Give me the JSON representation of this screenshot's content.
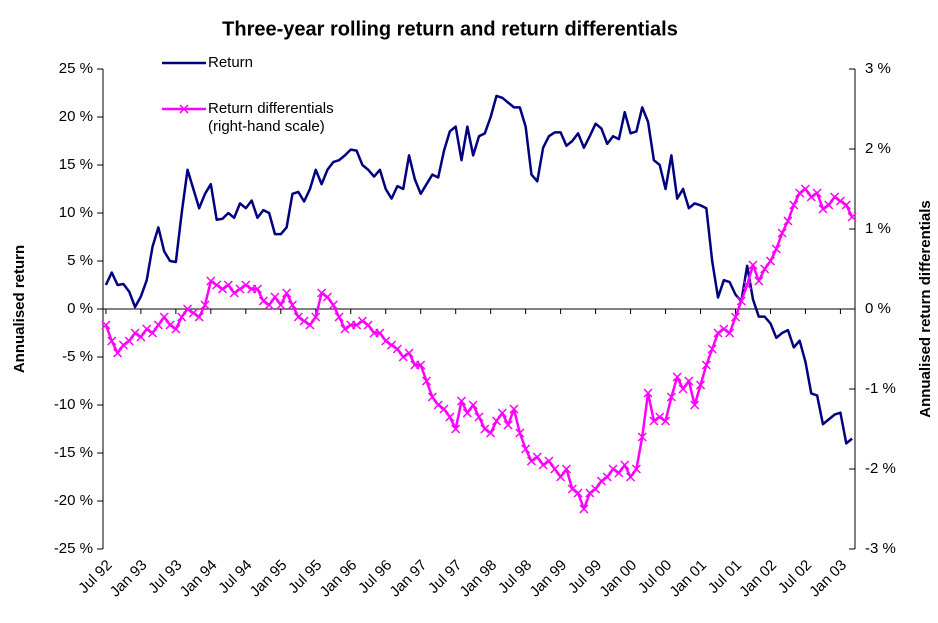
{
  "chart_data": {
    "type": "line",
    "title": "Three-year rolling return and return differentials",
    "y_label": "Annualised return",
    "y2_label": "Annualised return differentials",
    "categories": [
      "Jul 92",
      null,
      null,
      null,
      null,
      null,
      "Jan 93",
      null,
      null,
      null,
      null,
      null,
      "Jul 93",
      null,
      null,
      null,
      null,
      null,
      "Jan 94",
      null,
      null,
      null,
      null,
      null,
      "Jul 94",
      null,
      null,
      null,
      null,
      null,
      "Jan 95",
      null,
      null,
      null,
      null,
      null,
      "Jul 95",
      null,
      null,
      null,
      null,
      null,
      "Jan 96",
      null,
      null,
      null,
      null,
      null,
      "Jul 96",
      null,
      null,
      null,
      null,
      null,
      "Jan 97",
      null,
      null,
      null,
      null,
      null,
      "Jul 97",
      null,
      null,
      null,
      null,
      null,
      "Jan 98",
      null,
      null,
      null,
      null,
      null,
      "Jul 98",
      null,
      null,
      null,
      null,
      null,
      "Jan 99",
      null,
      null,
      null,
      null,
      null,
      "Jul 99",
      null,
      null,
      null,
      null,
      null,
      "Jan 00",
      null,
      null,
      null,
      null,
      null,
      "Jul 00",
      null,
      null,
      null,
      null,
      null,
      "Jan 01",
      null,
      null,
      null,
      null,
      null,
      "Jul 01",
      null,
      null,
      null,
      null,
      null,
      "Jan 02",
      null,
      null,
      null,
      null,
      null,
      "Jul 02",
      null,
      null,
      null,
      null,
      null,
      "Jan 03",
      null,
      null
    ],
    "series": [
      {
        "name": "Return",
        "color": "#000080",
        "values": [
          2.5,
          3.8,
          2.5,
          2.6,
          1.8,
          0.2,
          1.3,
          3,
          6.5,
          8.5,
          6,
          5,
          4.9,
          10,
          14.5,
          12.5,
          10.5,
          12,
          13,
          9.3,
          9.4,
          10,
          9.5,
          11,
          10.5,
          11.3,
          9.5,
          10.3,
          10,
          7.8,
          7.8,
          8.5,
          12,
          12.2,
          11.2,
          12.5,
          14.5,
          13,
          14.5,
          15.3,
          15.5,
          16,
          16.6,
          16.5,
          15,
          14.5,
          13.8,
          14.5,
          12.5,
          11.5,
          12.8,
          12.5,
          16,
          13.5,
          12,
          13,
          14,
          13.7,
          16.5,
          18.5,
          19,
          15.5,
          19,
          16,
          18,
          18.3,
          20,
          22.2,
          22,
          21.5,
          21,
          21,
          19,
          14,
          13.3,
          16.8,
          18,
          18.4,
          18.4,
          17,
          17.5,
          18.3,
          16.8,
          18,
          19.3,
          18.8,
          17.2,
          18,
          17.7,
          20.5,
          18.3,
          18.5,
          21,
          19.5,
          15.5,
          15,
          12.5,
          16,
          11.5,
          12.5,
          10.5,
          11,
          10.8,
          10.5,
          5,
          1.2,
          3,
          2.8,
          1.5,
          0.8,
          4.5,
          1,
          -0.8,
          -0.8,
          -1.5,
          -3,
          -2.5,
          -2.2,
          -4,
          -3.3,
          -5.5,
          -8.8,
          -9,
          -12,
          -11.5,
          -11,
          -10.8,
          -14,
          -13.5
        ]
      },
      {
        "name": "Return differentials (right-hand scale)",
        "color": "#ff00ff",
        "axis": "y2",
        "marker": "x",
        "values": [
          -0.2,
          -0.4,
          -0.55,
          -0.45,
          -0.4,
          -0.3,
          -0.35,
          -0.25,
          -0.3,
          -0.2,
          -0.1,
          -0.2,
          -0.25,
          -0.1,
          0,
          -0.05,
          -0.1,
          0.05,
          0.35,
          0.3,
          0.25,
          0.3,
          0.2,
          0.25,
          0.3,
          0.25,
          0.25,
          0.1,
          0.05,
          0.15,
          0.05,
          0.2,
          0.05,
          -0.1,
          -0.15,
          -0.2,
          -0.1,
          0.2,
          0.15,
          0.05,
          -0.1,
          -0.25,
          -0.2,
          -0.2,
          -0.15,
          -0.2,
          -0.3,
          -0.3,
          -0.4,
          -0.45,
          -0.5,
          -0.6,
          -0.55,
          -0.7,
          -0.7,
          -0.9,
          -1.1,
          -1.2,
          -1.25,
          -1.35,
          -1.5,
          -1.15,
          -1.3,
          -1.2,
          -1.35,
          -1.5,
          -1.55,
          -1.4,
          -1.3,
          -1.45,
          -1.25,
          -1.55,
          -1.75,
          -1.9,
          -1.85,
          -1.95,
          -1.9,
          -2,
          -2.1,
          -2,
          -2.25,
          -2.3,
          -2.5,
          -2.3,
          -2.25,
          -2.15,
          -2.1,
          -2,
          -2.05,
          -1.95,
          -2.1,
          -2,
          -1.6,
          -1.05,
          -1.4,
          -1.35,
          -1.4,
          -1.1,
          -0.85,
          -1,
          -0.9,
          -1.2,
          -0.95,
          -0.7,
          -0.5,
          -0.3,
          -0.25,
          -0.3,
          -0.1,
          0.1,
          0.3,
          0.55,
          0.35,
          0.5,
          0.6,
          0.75,
          0.95,
          1.1,
          1.3,
          1.45,
          1.5,
          1.4,
          1.45,
          1.25,
          1.3,
          1.4,
          1.35,
          1.3,
          1.15
        ]
      }
    ],
    "ylim": [
      -25,
      25
    ],
    "yticks": [
      {
        "value": -25,
        "label": "-25 %"
      },
      {
        "value": -20,
        "label": "-20 %"
      },
      {
        "value": -15,
        "label": "-15 %"
      },
      {
        "value": -10,
        "label": "-10 %"
      },
      {
        "value": -5,
        "label": "-5 %"
      },
      {
        "value": 0,
        "label": "0 %"
      },
      {
        "value": 5,
        "label": "5 %"
      },
      {
        "value": 10,
        "label": "10 %"
      },
      {
        "value": 15,
        "label": "15 %"
      },
      {
        "value": 20,
        "label": "20 %"
      },
      {
        "value": 25,
        "label": "25 %"
      }
    ],
    "y2lim": [
      -3,
      3
    ],
    "y2ticks": [
      {
        "value": -3,
        "label": "-3 %"
      },
      {
        "value": -2,
        "label": "-2 %"
      },
      {
        "value": -1,
        "label": "-1 %"
      },
      {
        "value": 0,
        "label": "0 %"
      },
      {
        "value": 1,
        "label": "1 %"
      },
      {
        "value": 2,
        "label": "2 %"
      },
      {
        "value": 3,
        "label": "3 %"
      }
    ],
    "grid": false
  }
}
